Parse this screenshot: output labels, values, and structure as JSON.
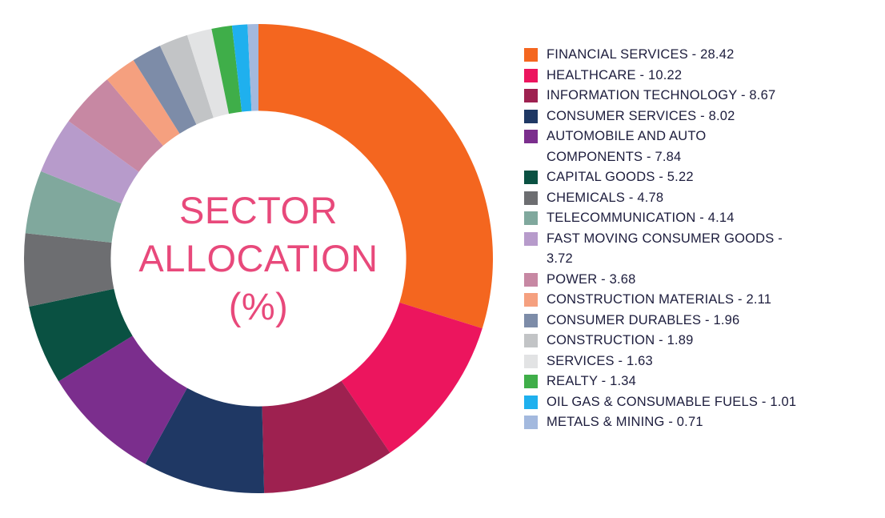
{
  "chart_data": {
    "type": "pie",
    "subtype": "donut",
    "title": "SECTOR ALLOCATION (%)",
    "center_lines": [
      "SECTOR",
      "ALLOCATION",
      "(%)"
    ],
    "center_text_color": "#E8497B",
    "legend_position": "right",
    "legend_text_color": "#1D1D3D",
    "separator": " - ",
    "start_angle_deg": 0,
    "direction": "clockwise",
    "inner_radius_ratio": 0.63,
    "background": "#FFFFFF",
    "segments": [
      {
        "label": "FINANCIAL SERVICES",
        "value": 28.42,
        "color": "#F4661F"
      },
      {
        "label": "HEALTHCARE",
        "value": 10.22,
        "color": "#EC155E"
      },
      {
        "label": "INFORMATION TECHNOLOGY",
        "value": 8.67,
        "color": "#9E2150"
      },
      {
        "label": "CONSUMER SERVICES",
        "value": 8.02,
        "color": "#1F3864"
      },
      {
        "label": "AUTOMOBILE AND AUTO COMPONENTS",
        "value": 7.84,
        "color": "#7B2E8D"
      },
      {
        "label": "CAPITAL GOODS",
        "value": 5.22,
        "color": "#0A5142"
      },
      {
        "label": "CHEMICALS",
        "value": 4.78,
        "color": "#6D6E71"
      },
      {
        "label": "TELECOMMUNICATION",
        "value": 4.14,
        "color": "#80A89D"
      },
      {
        "label": "FAST MOVING CONSUMER GOODS",
        "value": 3.72,
        "color": "#B79BCB"
      },
      {
        "label": "POWER",
        "value": 3.68,
        "color": "#C788A3"
      },
      {
        "label": "CONSTRUCTION MATERIALS",
        "value": 2.11,
        "color": "#F5A07F"
      },
      {
        "label": "CONSUMER DURABLES",
        "value": 1.96,
        "color": "#7D8CA8"
      },
      {
        "label": "CONSTRUCTION",
        "value": 1.89,
        "color": "#C2C4C6"
      },
      {
        "label": "SERVICES",
        "value": 1.63,
        "color": "#E2E3E4"
      },
      {
        "label": "REALTY",
        "value": 1.34,
        "color": "#3FAE49"
      },
      {
        "label": "OIL GAS & CONSUMABLE FUELS",
        "value": 1.01,
        "color": "#1FB0EE"
      },
      {
        "label": "METALS & MINING",
        "value": 0.71,
        "color": "#A3B9DE"
      }
    ]
  }
}
